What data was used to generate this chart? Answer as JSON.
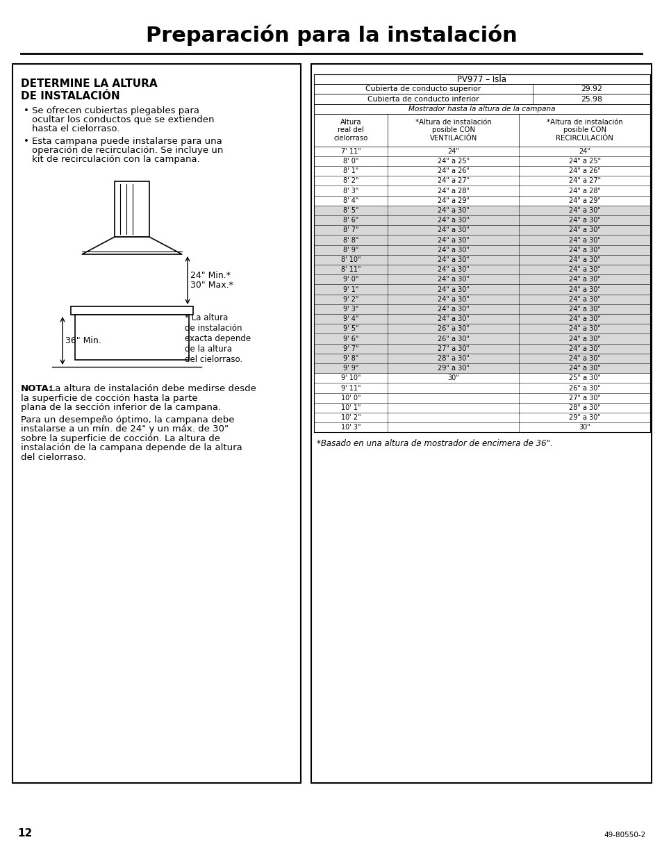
{
  "title": "Preparación para la instalación",
  "page_number": "12",
  "page_ref": "49-80550-2",
  "left_section": {
    "heading_line1": "DETERMINE LA ALTURA",
    "heading_line2": "DE INSTALACIÓN",
    "bullet1": "Se ofrecen cubiertas plegables para ocultar los conductos que se extienden hasta el cielorraso.",
    "bullet2": "Esta campana puede instalarse para una operación de recirculación. Se incluye un kit de recirculación con la campana.",
    "label_min": "24\" Min.*",
    "label_max": "30\" Max.*",
    "label_floor": "36\" Min.",
    "label_note_star": "* La altura\nde instalación\nexacta depende\nde la altura\ndel cielorraso.",
    "nota_bold": "NOTA:",
    "nota_text": "La altura de instalación debe medirse desde la superficie de cocción hasta la parte plana de la sección inferior de la campana.",
    "para_text": "Para un desempeño óptimo, la campana debe instalarse a un mín. de 24\" y un máx. de 30\" sobre la superficie de cocción. La altura de instalación de la campana depende de la altura del cielorraso."
  },
  "right_section": {
    "model_header": "PV977 – Isla",
    "row_superior": [
      "Cubierta de conducto superior",
      "29.92"
    ],
    "row_inferior": [
      "Cubierta de conducto inferior",
      "25.98"
    ],
    "sub_header": "Mostrador hasta la altura de la campana",
    "col_headers": [
      "Altura\nreal del\ncielorraso",
      "*Altura de instalación\nposible CON\nVENTILACIÓN",
      "*Altura de instalación\nposible CON\nRECIRCULACIÓN"
    ],
    "table_rows": [
      [
        "7' 11\"",
        "24\"",
        "24\"",
        false
      ],
      [
        "8' 0\"",
        "24\" a 25\"",
        "24\" a 25\"",
        false
      ],
      [
        "8' 1\"",
        "24\" a 26\"",
        "24\" a 26\"",
        false
      ],
      [
        "8' 2\"",
        "24\" a 27\"",
        "24\" a 27\"",
        false
      ],
      [
        "8' 3\"",
        "24\" a 28\"",
        "24\" a 28\"",
        false
      ],
      [
        "8' 4\"",
        "24\" a 29\"",
        "24\" a 29\"",
        false
      ],
      [
        "8' 5\"",
        "24\" a 30\"",
        "24\" a 30\"",
        true
      ],
      [
        "8' 6\"",
        "24\" a 30\"",
        "24\" a 30\"",
        true
      ],
      [
        "8' 7\"",
        "24\" a 30\"",
        "24\" a 30\"",
        true
      ],
      [
        "8' 8\"",
        "24\" a 30\"",
        "24\" a 30\"",
        true
      ],
      [
        "8' 9\"",
        "24\" a 30\"",
        "24\" a 30\"",
        true
      ],
      [
        "8' 10\"",
        "24\" a 30\"",
        "24\" a 30\"",
        true
      ],
      [
        "8' 11\"",
        "24\" a 30\"",
        "24\" a 30\"",
        true
      ],
      [
        "9' 0\"",
        "24\" a 30\"",
        "24\" a 30\"",
        true
      ],
      [
        "9' 1\"",
        "24\" a 30\"",
        "24\" a 30\"",
        true
      ],
      [
        "9' 2\"",
        "24\" a 30\"",
        "24\" a 30\"",
        true
      ],
      [
        "9' 3\"",
        "24\" a 30\"",
        "24\" a 30\"",
        true
      ],
      [
        "9' 4\"",
        "24\" a 30\"",
        "24\" a 30\"",
        true
      ],
      [
        "9' 5\"",
        "26\" a 30\"",
        "24\" a 30\"",
        true
      ],
      [
        "9' 6\"",
        "26\" a 30\"",
        "24\" a 30\"",
        true
      ],
      [
        "9' 7\"",
        "27\" a 30\"",
        "24\" a 30\"",
        true
      ],
      [
        "9' 8\"",
        "28\" a 30\"",
        "24\" a 30\"",
        true
      ],
      [
        "9' 9\"",
        "29\" a 30\"",
        "24\" a 30\"",
        true
      ],
      [
        "9' 10\"",
        "30\"",
        "25\" a 30\"",
        false
      ],
      [
        "9' 11\"",
        "",
        "26\" a 30\"",
        false
      ],
      [
        "10' 0\"",
        "",
        "27\" a 30\"",
        false
      ],
      [
        "10' 1\"",
        "",
        "28\" a 30\"",
        false
      ],
      [
        "10' 2\"",
        "",
        "29\" a 30\"",
        false
      ],
      [
        "10' 3\"",
        "",
        "30\"",
        false
      ]
    ],
    "footnote": "*Basado en una altura de mostrador de encimera de 36\"."
  },
  "bg_color": "#ffffff",
  "shaded_color": "#d8d8d8",
  "text_color": "#000000"
}
